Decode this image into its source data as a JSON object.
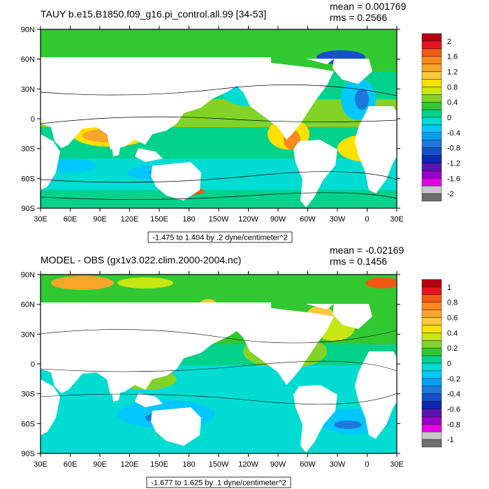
{
  "top_panel": {
    "title": "TAUY b.e15.B1850.f09_g16.pi_control.all.99 [34-53]",
    "mean": "mean = 0.001769",
    "rms": "rms = 0.2566",
    "range_box": "-1.475 to 1.404 by .2 dyne/centimeter^2",
    "lat_labels": [
      "90N",
      "60N",
      "30N",
      "0",
      "30S",
      "60S",
      "90S"
    ],
    "lon_labels": [
      "30E",
      "60E",
      "90E",
      "120E",
      "150E",
      "180",
      "150W",
      "120W",
      "90W",
      "60W",
      "30W",
      "0",
      "30E"
    ],
    "colorbar": {
      "labels": [
        "2",
        "1.6",
        "1.2",
        "0.8",
        "0.4",
        "0",
        "-0.4",
        "-0.8",
        "-1.2",
        "-1.6",
        "-2"
      ],
      "colors": [
        "#b3000f",
        "#e6141e",
        "#f05a14",
        "#f7871e",
        "#faa528",
        "#fac83c",
        "#ffe100",
        "#c8e614",
        "#82d228",
        "#32c832",
        "#00d28c",
        "#00dcd2",
        "#00c8ff",
        "#00a0f0",
        "#1e78dc",
        "#1450c8",
        "#0a28b4",
        "#5a14b4",
        "#9600c8",
        "#e600e6",
        "#c8c8c8",
        "#6e6e6e"
      ]
    }
  },
  "bottom_panel": {
    "title": "MODEL - OBS (gx1v3.022.clim.2000-2004.nc)",
    "mean": "mean = -0.02169",
    "rms": "rms = 0.1456",
    "range_box": "-1.677 to 1.625 by .1 dyne/centimeter^2",
    "lat_labels": [
      "90N",
      "60N",
      "30N",
      "0",
      "30S",
      "60S",
      "90S"
    ],
    "lon_labels": [
      "30E",
      "60E",
      "90E",
      "120E",
      "150E",
      "180",
      "150W",
      "120W",
      "90W",
      "60W",
      "30W",
      "0",
      "30E"
    ],
    "colorbar": {
      "labels": [
        "1",
        "0.8",
        "0.6",
        "0.4",
        "0.2",
        "0",
        "-0.2",
        "-0.4",
        "-0.6",
        "-0.8",
        "-1"
      ],
      "colors": [
        "#b3000f",
        "#e6141e",
        "#f05a14",
        "#f7871e",
        "#faa528",
        "#fac83c",
        "#ffe100",
        "#c8e614",
        "#82d228",
        "#32c832",
        "#00d28c",
        "#00dcd2",
        "#00c8ff",
        "#00a0f0",
        "#1e78dc",
        "#1450c8",
        "#0a28b4",
        "#5a14b4",
        "#9600c8",
        "#e600e6",
        "#c8c8c8",
        "#6e6e6e"
      ]
    }
  }
}
